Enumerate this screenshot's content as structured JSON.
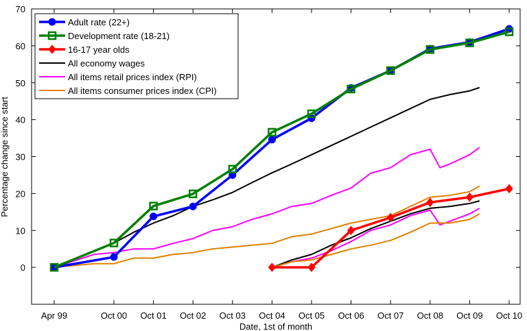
{
  "chart_data": {
    "type": "line",
    "xlabel": "Date, 1st of month",
    "ylabel": "Percentage change since start",
    "ylim": [
      -10,
      70
    ],
    "yticks": [
      0,
      10,
      20,
      30,
      40,
      50,
      60,
      70
    ],
    "xticks": [
      {
        "label": "Apr 99",
        "t": 0
      },
      {
        "label": "Oct 00",
        "t": 1.5
      },
      {
        "label": "Oct 01",
        "t": 2.5
      },
      {
        "label": "Oct 02",
        "t": 3.5
      },
      {
        "label": "Oct 03",
        "t": 4.5
      },
      {
        "label": "Oct 04",
        "t": 5.5
      },
      {
        "label": "Oct 05",
        "t": 6.5
      },
      {
        "label": "Oct 06",
        "t": 7.5
      },
      {
        "label": "Oct 07",
        "t": 8.5
      },
      {
        "label": "Oct 08",
        "t": 9.5
      },
      {
        "label": "Oct 09",
        "t": 10.5
      },
      {
        "label": "Oct 10",
        "t": 11.5
      }
    ],
    "grid": false,
    "legend_position": "top-left",
    "series": [
      {
        "name": "Adult rate (22+)",
        "color": "#0000ff",
        "marker": "circle",
        "points": [
          [
            "Apr 99",
            0
          ],
          [
            "Oct 00",
            2.8
          ],
          [
            "Oct 01",
            13.8
          ],
          [
            "Oct 02",
            16.5
          ],
          [
            "Oct 03",
            25
          ],
          [
            "Oct 04",
            34.6
          ],
          [
            "Oct 05",
            40.4
          ],
          [
            "Oct 06",
            48.6
          ],
          [
            "Oct 07",
            53.3
          ],
          [
            "Oct 08",
            59.2
          ],
          [
            "Oct 09",
            61.0
          ],
          [
            "Oct 10",
            64.6
          ]
        ]
      },
      {
        "name": "Development rate (18-21)",
        "color": "#008000",
        "marker": "open-square",
        "points": [
          [
            "Apr 99",
            0
          ],
          [
            "Oct 00",
            6.6
          ],
          [
            "Oct 01",
            16.6
          ],
          [
            "Oct 02",
            19.9
          ],
          [
            "Oct 03",
            26.6
          ],
          [
            "Oct 04",
            36.6
          ],
          [
            "Oct 05",
            41.6
          ],
          [
            "Oct 06",
            48.3
          ],
          [
            "Oct 07",
            53.3
          ],
          [
            "Oct 08",
            59.0
          ],
          [
            "Oct 09",
            60.8
          ],
          [
            "Oct 10",
            63.8
          ]
        ]
      },
      {
        "name": "16-17 year olds",
        "color": "#ff0000",
        "marker": "diamond",
        "points": [
          [
            "Oct 04",
            0
          ],
          [
            "Oct 05",
            0
          ],
          [
            "Oct 06",
            10.0
          ],
          [
            "Oct 07",
            13.5
          ],
          [
            "Oct 08",
            17.6
          ],
          [
            "Oct 09",
            19.0
          ],
          [
            "Oct 10",
            21.3
          ]
        ]
      },
      {
        "name": "All economy wages",
        "color": "#000000",
        "marker": "none",
        "points": [
          [
            "Apr 99",
            0
          ],
          [
            "Apr 00",
            4.5
          ],
          [
            "Oct 00",
            6.6
          ],
          [
            "Apr 01",
            9.5
          ],
          [
            "Oct 01",
            12
          ],
          [
            "Apr 02",
            14
          ],
          [
            "Oct 02",
            16.5
          ],
          [
            "Apr 03",
            18.3
          ],
          [
            "Oct 03",
            20.3
          ],
          [
            "Apr 04",
            23
          ],
          [
            "Oct 04",
            25.6
          ],
          [
            "Apr 05",
            28
          ],
          [
            "Oct 05",
            30.5
          ],
          [
            "Apr 06",
            33
          ],
          [
            "Oct 06",
            35.5
          ],
          [
            "Apr 07",
            38
          ],
          [
            "Oct 07",
            40.5
          ],
          [
            "Apr 08",
            43
          ],
          [
            "Oct 08",
            45.5
          ],
          [
            "Apr 09",
            46.8
          ],
          [
            "Oct 09",
            47.8
          ],
          [
            "Jan 10",
            48.7
          ]
        ]
      },
      {
        "name": "All items retail prices index (RPI)",
        "color": "#ff00ff",
        "marker": "none",
        "points": [
          [
            "Apr 99",
            0
          ],
          [
            "Apr 00",
            3.5
          ],
          [
            "Oct 00",
            4
          ],
          [
            "Apr 01",
            5
          ],
          [
            "Oct 01",
            5
          ],
          [
            "Apr 02",
            6.5
          ],
          [
            "Oct 02",
            7.8
          ],
          [
            "Apr 03",
            10
          ],
          [
            "Oct 03",
            11
          ],
          [
            "Apr 04",
            13
          ],
          [
            "Oct 04",
            14.5
          ],
          [
            "Apr 05",
            16.5
          ],
          [
            "Oct 05",
            17.3
          ],
          [
            "Apr 06",
            19.5
          ],
          [
            "Oct 06",
            21.5
          ],
          [
            "Apr 07",
            25.5
          ],
          [
            "Oct 07",
            27
          ],
          [
            "Apr 08",
            30.5
          ],
          [
            "Oct 08",
            32
          ],
          [
            "Jan 09",
            27
          ],
          [
            "Apr 09",
            28
          ],
          [
            "Oct 09",
            30.5
          ],
          [
            "Jan 10",
            32.5
          ]
        ]
      },
      {
        "name": "All items consumer prices index (CPI)",
        "color": "#e08000",
        "marker": "none",
        "points": [
          [
            "Apr 99",
            0
          ],
          [
            "Apr 00",
            1
          ],
          [
            "Oct 00",
            1
          ],
          [
            "Apr 01",
            2.5
          ],
          [
            "Oct 01",
            2.5
          ],
          [
            "Apr 02",
            3.5
          ],
          [
            "Oct 02",
            4
          ],
          [
            "Apr 03",
            5
          ],
          [
            "Oct 03",
            5.5
          ],
          [
            "Apr 04",
            6
          ],
          [
            "Oct 04",
            6.5
          ],
          [
            "Apr 05",
            8.3
          ],
          [
            "Oct 05",
            9
          ],
          [
            "Apr 06",
            10.5
          ],
          [
            "Oct 06",
            12
          ],
          [
            "Apr 07",
            13
          ],
          [
            "Oct 07",
            14
          ],
          [
            "Apr 08",
            16.5
          ],
          [
            "Oct 08",
            19
          ],
          [
            "Apr 09",
            19.5
          ],
          [
            "Oct 09",
            20.5
          ],
          [
            "Jan 10",
            22
          ]
        ]
      },
      {
        "color": "#000000",
        "marker": "none",
        "points": [
          [
            "Oct 04",
            0
          ],
          [
            "Apr 05",
            2
          ],
          [
            "Oct 05",
            3.5
          ],
          [
            "Apr 06",
            6
          ],
          [
            "Oct 06",
            8
          ],
          [
            "Apr 07",
            10.5
          ],
          [
            "Oct 07",
            12.5
          ],
          [
            "Apr 08",
            14.5
          ],
          [
            "Oct 08",
            16
          ],
          [
            "Apr 09",
            16.5
          ],
          [
            "Oct 09",
            17.3
          ],
          [
            "Jan 10",
            18
          ]
        ]
      },
      {
        "color": "#ff00ff",
        "marker": "none",
        "points": [
          [
            "Oct 04",
            0
          ],
          [
            "Apr 05",
            1.5
          ],
          [
            "Oct 05",
            2.5
          ],
          [
            "Apr 06",
            4.5
          ],
          [
            "Oct 06",
            7
          ],
          [
            "Apr 07",
            10
          ],
          [
            "Oct 07",
            11.5
          ],
          [
            "Apr 08",
            14
          ],
          [
            "Oct 08",
            15.5
          ],
          [
            "Jan 09",
            11.5
          ],
          [
            "Apr 09",
            12.5
          ],
          [
            "Oct 09",
            14.5
          ],
          [
            "Jan 10",
            16
          ]
        ]
      },
      {
        "color": "#e08000",
        "marker": "none",
        "points": [
          [
            "Oct 04",
            0
          ],
          [
            "Apr 05",
            1.5
          ],
          [
            "Oct 05",
            2
          ],
          [
            "Apr 06",
            3.5
          ],
          [
            "Oct 06",
            5
          ],
          [
            "Apr 07",
            6
          ],
          [
            "Oct 07",
            7.3
          ],
          [
            "Apr 08",
            9.5
          ],
          [
            "Oct 08",
            12
          ],
          [
            "Apr 09",
            12
          ],
          [
            "Oct 09",
            13
          ],
          [
            "Jan 10",
            14.5
          ]
        ]
      }
    ]
  }
}
